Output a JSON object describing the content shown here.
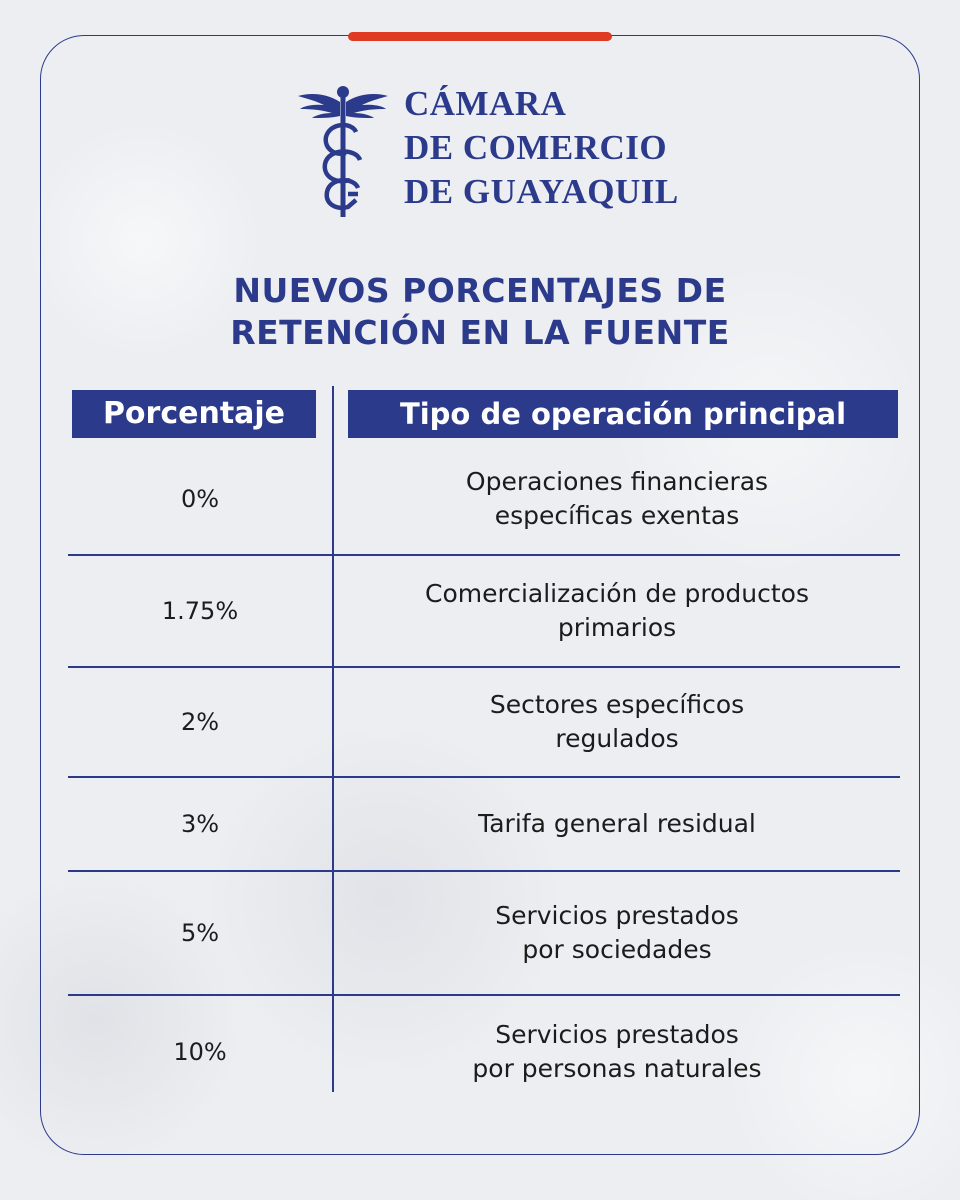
{
  "logo": {
    "line1": "CÁMARA",
    "line2": "DE COMERCIO",
    "line3": "DE GUAYAQUIL"
  },
  "title": {
    "line1": "NUEVOS PORCENTAJES DE",
    "line2": "RETENCIÓN EN LA FUENTE"
  },
  "table": {
    "headers": {
      "percentage": "Porcentaje",
      "operation": "Tipo de operación principal"
    },
    "rows": [
      {
        "percentage": "0%",
        "operation": "Operaciones financieras\nespecíficas exentas"
      },
      {
        "percentage": "1.75%",
        "operation": "Comercialización de productos\nprimarios"
      },
      {
        "percentage": "2%",
        "operation": "Sectores específicos\nregulados"
      },
      {
        "percentage": "3%",
        "operation": "Tarifa general residual"
      },
      {
        "percentage": "5%",
        "operation": "Servicios prestados\npor sociedades"
      },
      {
        "percentage": "10%",
        "operation": "Servicios prestados\npor personas naturales"
      }
    ]
  },
  "colors": {
    "brand_blue": "#2c3a8c",
    "accent_red": "#e03a22"
  }
}
